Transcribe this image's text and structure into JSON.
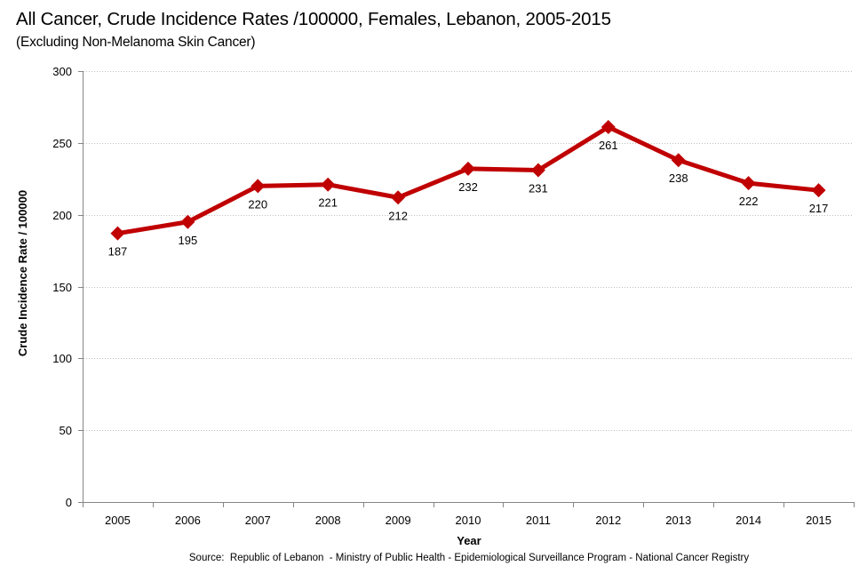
{
  "chart_data": {
    "type": "line",
    "title": "All Cancer, Crude Incidence Rates /100000, Females, Lebanon, 2005-2015",
    "subtitle": "(Excluding Non-Melanoma Skin Cancer)",
    "xlabel": "Year",
    "ylabel": "Crude Incidence Rate / 100000",
    "categories": [
      "2005",
      "2006",
      "2007",
      "2008",
      "2009",
      "2010",
      "2011",
      "2012",
      "2013",
      "2014",
      "2015"
    ],
    "series": [
      {
        "name": "Crude Incidence Rate",
        "values": [
          187,
          195,
          220,
          221,
          212,
          232,
          231,
          261,
          238,
          222,
          217
        ],
        "color": "#C00000",
        "marker": "diamond",
        "data_labels": true,
        "data_label_position": "below"
      }
    ],
    "ylim": [
      0,
      300
    ],
    "yticks": [
      0,
      50,
      100,
      150,
      200,
      250,
      300
    ],
    "grid": "horizontal-dotted",
    "legend": "none",
    "source": "Source:  Republic of Lebanon  - Ministry of Public Health - Epidemiological Surveillance Program - National Cancer Registry"
  }
}
